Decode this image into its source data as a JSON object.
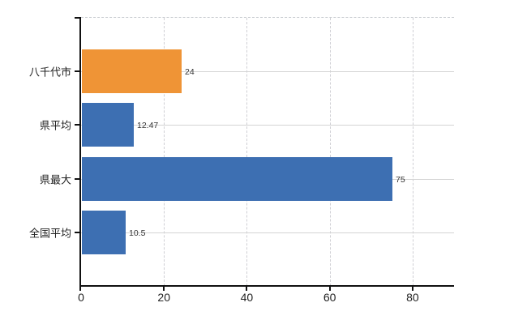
{
  "chart_data": {
    "type": "bar",
    "orientation": "horizontal",
    "title": "",
    "xlabel": "",
    "ylabel": "",
    "categories": [
      "八千代市",
      "県平均",
      "県最大",
      "全国平均"
    ],
    "values": [
      24,
      12.47,
      75,
      10.5
    ],
    "value_labels": [
      "24",
      "12.47",
      "75",
      "10.5"
    ],
    "bar_colors": [
      "#EF9436",
      "#3D6FB2",
      "#3D6FB2",
      "#3D6FB2"
    ],
    "xlim": [
      0,
      90
    ],
    "xticks": [
      0,
      20,
      40,
      60,
      80
    ],
    "xtick_labels": [
      "0",
      "20",
      "40",
      "60",
      "80"
    ],
    "grid": true,
    "legend": false,
    "colors": {
      "highlight_bar": "#EF9436",
      "default_bar": "#3D6FB2",
      "grid_line": "#D4D4D4",
      "axis_line": "#111111",
      "value_text": "#333333",
      "tick_text": "#222222",
      "background": "#FFFFFF"
    }
  }
}
